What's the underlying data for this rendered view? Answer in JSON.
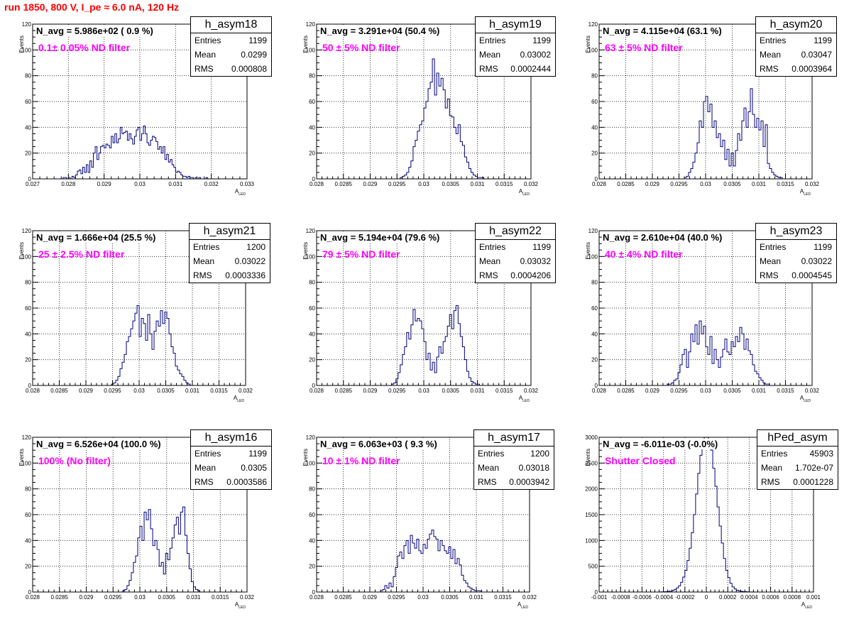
{
  "header": {
    "title": "run 1850,   800 V, I_pe ≈ 6.0 nA, 120 Hz"
  },
  "labels": {
    "entries": "Entries",
    "mean": "Mean",
    "rms": "RMS",
    "xlabel_main": "A",
    "xlabel_sub": "LED",
    "ylabel": "Events"
  },
  "colors": {
    "histogram": "#00007f",
    "title_text": "#ff0000",
    "filter_text": "#ff00ff",
    "grid": "#000000"
  },
  "chart_data": [
    {
      "type": "bar",
      "name": "h_asym18",
      "navg": "N_avg = 5.986e+02 ( 0.9 %)",
      "filter": "0.1± 0.05% ND filter",
      "stats": {
        "entries": "1199",
        "mean": "0.0299",
        "rms": "0.000808"
      },
      "xlim": [
        0.027,
        0.033
      ],
      "ylim": [
        0,
        120
      ],
      "xticks": [
        "0.027",
        "0.028",
        "0.029",
        "0.03",
        "0.031",
        "0.032",
        "0.033"
      ],
      "yticks": [
        "0",
        "20",
        "40",
        "60",
        "80",
        "100",
        "120"
      ],
      "values": [
        0,
        0,
        0,
        0,
        0,
        0,
        0,
        0,
        0,
        0,
        0,
        0,
        0,
        0,
        0,
        0,
        0,
        1,
        1,
        0,
        1,
        0,
        2,
        1,
        3,
        6,
        7,
        4,
        9,
        5,
        11,
        5,
        14,
        9,
        20,
        25,
        15,
        20,
        25,
        26,
        24,
        27,
        26,
        24,
        33,
        28,
        35,
        28,
        31,
        40,
        35,
        36,
        37,
        30,
        35,
        31,
        27,
        33,
        38,
        40,
        30,
        35,
        41,
        35,
        28,
        26,
        30,
        33,
        32,
        29,
        23,
        25,
        20,
        25,
        15,
        19,
        13,
        15,
        11,
        9,
        5,
        6,
        5,
        3,
        2,
        2,
        1,
        2,
        1,
        1,
        0,
        1,
        0,
        1,
        0,
        0,
        0,
        1,
        0,
        0,
        0,
        0,
        0,
        0,
        0,
        0,
        0,
        0,
        0,
        0,
        0,
        0,
        0,
        0,
        0,
        0,
        0,
        0,
        0,
        0
      ]
    },
    {
      "type": "bar",
      "name": "h_asym19",
      "navg": "N_avg = 3.291e+04 (50.4 %)",
      "filter": "50 ± 5% ND filter",
      "stats": {
        "entries": "1199",
        "mean": "0.03002",
        "rms": "0.0002444"
      },
      "xlim": [
        0.028,
        0.032
      ],
      "ylim": [
        0,
        120
      ],
      "xticks": [
        "0.028",
        "0.0285",
        "0.029",
        "0.0295",
        "0.03",
        "0.0305",
        "0.031",
        "0.0315",
        "0.032"
      ],
      "yticks": [
        "0",
        "20",
        "40",
        "60",
        "80",
        "100",
        "120"
      ],
      "values": [
        0,
        0,
        0,
        0,
        0,
        0,
        0,
        0,
        0,
        0,
        0,
        0,
        0,
        0,
        0,
        0,
        0,
        0,
        0,
        0,
        0,
        0,
        0,
        0,
        0,
        0,
        0,
        0,
        0,
        0,
        0,
        0,
        0,
        0,
        0,
        0,
        0,
        0,
        0,
        1,
        2,
        3,
        5,
        9,
        14,
        25,
        30,
        37,
        42,
        45,
        55,
        60,
        70,
        75,
        93,
        65,
        82,
        72,
        78,
        69,
        55,
        62,
        49,
        48,
        40,
        35,
        42,
        29,
        26,
        17,
        13,
        8,
        5,
        3,
        2,
        1,
        1,
        1,
        0,
        0,
        0,
        0,
        0,
        0,
        0,
        0,
        0,
        0,
        0,
        0,
        0,
        0,
        0,
        0,
        0,
        0,
        0,
        0,
        0,
        0
      ]
    },
    {
      "type": "bar",
      "name": "h_asym20",
      "navg": "N_avg = 4.115e+04 (63.1 %)",
      "filter": "63 ± 5% ND filter",
      "stats": {
        "entries": "1199",
        "mean": "0.03047",
        "rms": "0.0003964"
      },
      "xlim": [
        0.028,
        0.032
      ],
      "ylim": [
        0,
        120
      ],
      "xticks": [
        "0.028",
        "0.0285",
        "0.029",
        "0.0295",
        "0.03",
        "0.0305",
        "0.031",
        "0.0315",
        "0.032"
      ],
      "yticks": [
        "0",
        "20",
        "40",
        "60",
        "80",
        "100",
        "120"
      ],
      "values": [
        0,
        0,
        0,
        0,
        0,
        0,
        0,
        0,
        0,
        0,
        0,
        0,
        0,
        0,
        0,
        0,
        0,
        0,
        0,
        0,
        0,
        0,
        0,
        0,
        0,
        0,
        0,
        0,
        0,
        0,
        0,
        0,
        0,
        0,
        0,
        0,
        0,
        0,
        0,
        0,
        1,
        2,
        5,
        8,
        13,
        20,
        28,
        45,
        40,
        60,
        64,
        52,
        58,
        40,
        45,
        32,
        35,
        25,
        30,
        15,
        23,
        10,
        20,
        10,
        22,
        35,
        30,
        45,
        55,
        40,
        52,
        70,
        50,
        40,
        47,
        38,
        45,
        25,
        42,
        12,
        8,
        5,
        3,
        2,
        1,
        1,
        0,
        0,
        0,
        0,
        0,
        0,
        0,
        0,
        0,
        0,
        0,
        0,
        0,
        0
      ]
    },
    {
      "type": "bar",
      "name": "h_asym21",
      "navg": "N_avg = 1.666e+04 (25.5 %)",
      "filter": "25 ± 2.5% ND filter",
      "stats": {
        "entries": "1200",
        "mean": "0.03022",
        "rms": "0.0003336"
      },
      "xlim": [
        0.028,
        0.032
      ],
      "ylim": [
        0,
        120
      ],
      "xticks": [
        "0.028",
        "0.0285",
        "0.029",
        "0.0295",
        "0.03",
        "0.0305",
        "0.031",
        "0.0315",
        "0.032"
      ],
      "yticks": [
        "0",
        "20",
        "40",
        "60",
        "80",
        "100",
        "120"
      ],
      "values": [
        0,
        0,
        0,
        0,
        0,
        0,
        0,
        0,
        0,
        0,
        0,
        0,
        0,
        0,
        0,
        0,
        0,
        0,
        0,
        0,
        0,
        0,
        0,
        0,
        0,
        0,
        0,
        0,
        0,
        0,
        0,
        0,
        0,
        0,
        0,
        0,
        0,
        1,
        2,
        4,
        7,
        13,
        18,
        24,
        34,
        38,
        44,
        50,
        56,
        62,
        38,
        52,
        48,
        35,
        55,
        40,
        28,
        42,
        50,
        46,
        58,
        48,
        57,
        52,
        40,
        30,
        25,
        15,
        12,
        9,
        7,
        4,
        2,
        1,
        0,
        0,
        0,
        0,
        0,
        0,
        0,
        0,
        0,
        0,
        0,
        0,
        0,
        0,
        0,
        0,
        0,
        0,
        0,
        0,
        0,
        0,
        0,
        0,
        0,
        0
      ]
    },
    {
      "type": "bar",
      "name": "h_asym22",
      "navg": "N_avg = 5.194e+04 (79.6 %)",
      "filter": "79 ± 5% ND filter",
      "stats": {
        "entries": "1199",
        "mean": "0.03032",
        "rms": "0.0004206"
      },
      "xlim": [
        0.028,
        0.032
      ],
      "ylim": [
        0,
        120
      ],
      "xticks": [
        "0.028",
        "0.0285",
        "0.029",
        "0.0295",
        "0.03",
        "0.0305",
        "0.031",
        "0.0315",
        "0.032"
      ],
      "yticks": [
        "0",
        "20",
        "40",
        "60",
        "80",
        "100",
        "120"
      ],
      "values": [
        0,
        0,
        0,
        0,
        0,
        0,
        0,
        0,
        0,
        0,
        0,
        0,
        0,
        0,
        0,
        0,
        0,
        0,
        0,
        0,
        0,
        0,
        0,
        0,
        0,
        0,
        0,
        0,
        0,
        0,
        0,
        0,
        0,
        0,
        0,
        1,
        2,
        5,
        10,
        16,
        24,
        30,
        41,
        36,
        47,
        59,
        50,
        52,
        50,
        44,
        34,
        20,
        25,
        12,
        18,
        10,
        22,
        30,
        25,
        34,
        38,
        46,
        55,
        44,
        58,
        62,
        48,
        38,
        30,
        20,
        11,
        6,
        3,
        2,
        1,
        1,
        0,
        0,
        0,
        0,
        0,
        0,
        0,
        0,
        0,
        0,
        0,
        0,
        0,
        0,
        0,
        0,
        0,
        0,
        0,
        0,
        0,
        0,
        0,
        0
      ]
    },
    {
      "type": "bar",
      "name": "h_asym23",
      "navg": "N_avg = 2.610e+04 (40.0 %)",
      "filter": "40 ± 4% ND filter",
      "stats": {
        "entries": "1199",
        "mean": "0.03022",
        "rms": "0.0004545"
      },
      "xlim": [
        0.028,
        0.032
      ],
      "ylim": [
        0,
        120
      ],
      "xticks": [
        "0.028",
        "0.0285",
        "0.029",
        "0.0295",
        "0.03",
        "0.0305",
        "0.031",
        "0.0315",
        "0.032"
      ],
      "yticks": [
        "0",
        "20",
        "40",
        "60",
        "80",
        "100",
        "120"
      ],
      "values": [
        0,
        0,
        0,
        0,
        0,
        0,
        0,
        0,
        0,
        0,
        0,
        0,
        0,
        0,
        0,
        0,
        0,
        0,
        0,
        0,
        0,
        0,
        0,
        0,
        0,
        0,
        0,
        0,
        0,
        0,
        0,
        0,
        1,
        1,
        2,
        4,
        5,
        10,
        16,
        24,
        28,
        14,
        26,
        40,
        34,
        47,
        32,
        50,
        40,
        46,
        30,
        24,
        38,
        17,
        28,
        20,
        14,
        22,
        28,
        36,
        26,
        24,
        34,
        30,
        38,
        34,
        45,
        40,
        28,
        36,
        27,
        24,
        16,
        11,
        9,
        6,
        4,
        2,
        1,
        1,
        0,
        0,
        0,
        0,
        0,
        0,
        0,
        0,
        0,
        0,
        0,
        0,
        0,
        0,
        0,
        0,
        0,
        0,
        0,
        0
      ]
    },
    {
      "type": "bar",
      "name": "h_asym16",
      "navg": "N_avg = 6.526e+04 (100.0 %)",
      "filter": "100% (No filter)",
      "stats": {
        "entries": "1199",
        "mean": "0.0305",
        "rms": "0.0003586"
      },
      "xlim": [
        0.028,
        0.032
      ],
      "ylim": [
        0,
        120
      ],
      "xticks": [
        "0.028",
        "0.0285",
        "0.029",
        "0.0295",
        "0.03",
        "0.0305",
        "0.031",
        "0.0315",
        "0.032"
      ],
      "yticks": [
        "0",
        "20",
        "40",
        "60",
        "80",
        "100",
        "120"
      ],
      "values": [
        0,
        0,
        0,
        0,
        0,
        0,
        0,
        0,
        0,
        0,
        0,
        0,
        0,
        0,
        0,
        0,
        0,
        0,
        0,
        0,
        0,
        0,
        0,
        0,
        0,
        0,
        0,
        0,
        0,
        0,
        0,
        0,
        0,
        0,
        0,
        0,
        0,
        0,
        0,
        0,
        0,
        0,
        1,
        2,
        5,
        9,
        15,
        23,
        28,
        42,
        51,
        40,
        62,
        56,
        64,
        49,
        36,
        40,
        33,
        20,
        23,
        14,
        30,
        25,
        34,
        42,
        52,
        58,
        45,
        62,
        66,
        44,
        30,
        18,
        8,
        4,
        2,
        1,
        0,
        0,
        0,
        0,
        0,
        0,
        0,
        0,
        0,
        0,
        0,
        0,
        0,
        0,
        0,
        0,
        0,
        0,
        0,
        0,
        0,
        0
      ]
    },
    {
      "type": "bar",
      "name": "h_asym17",
      "navg": "N_avg = 6.063e+03 ( 9.3 %)",
      "filter": "10 ± 1% ND filter",
      "stats": {
        "entries": "1200",
        "mean": "0.03018",
        "rms": "0.0003942"
      },
      "xlim": [
        0.028,
        0.032
      ],
      "ylim": [
        0,
        120
      ],
      "xticks": [
        "0.028",
        "0.0285",
        "0.029",
        "0.0295",
        "0.03",
        "0.0305",
        "0.031",
        "0.0315",
        "0.032"
      ],
      "yticks": [
        "0",
        "20",
        "40",
        "60",
        "80",
        "100",
        "120"
      ],
      "values": [
        0,
        0,
        0,
        0,
        0,
        0,
        0,
        0,
        0,
        0,
        0,
        0,
        0,
        0,
        0,
        0,
        0,
        0,
        0,
        0,
        0,
        0,
        0,
        0,
        0,
        0,
        0,
        0,
        0,
        0,
        1,
        2,
        5,
        3,
        7,
        4,
        12,
        19,
        28,
        31,
        26,
        36,
        40,
        30,
        44,
        38,
        34,
        41,
        32,
        30,
        37,
        34,
        41,
        45,
        48,
        43,
        41,
        32,
        40,
        36,
        32,
        30,
        35,
        26,
        33,
        22,
        26,
        21,
        13,
        9,
        7,
        4,
        3,
        2,
        1,
        1,
        1,
        0,
        0,
        0,
        0,
        0,
        0,
        0,
        0,
        0,
        0,
        0,
        0,
        0,
        0,
        0,
        0,
        0,
        0,
        0,
        0,
        0,
        0,
        0
      ]
    },
    {
      "type": "bar",
      "name": "hPed_asym",
      "navg": "N_avg = -6.011e-03 (-0.0%)",
      "filter": "Shutter Closed",
      "stats": {
        "entries": "45903",
        "mean": "1.702e-07",
        "rms": "0.0001228"
      },
      "xlim": [
        -0.001,
        0.001
      ],
      "ylim": [
        0,
        3000
      ],
      "xticks": [
        "-0.001",
        "-0.0008",
        "-0.0006",
        "-0.0004",
        "-0.0002",
        "0",
        "0.0002",
        "0.0004",
        "0.0006",
        "0.0008",
        "0.001"
      ],
      "yticks": [
        "0",
        "500",
        "1000",
        "1500",
        "2000",
        "2500",
        "3000"
      ],
      "values": [
        0,
        0,
        0,
        0,
        0,
        0,
        0,
        0,
        0,
        0,
        0,
        0,
        0,
        0,
        0,
        0,
        0,
        0,
        0,
        0,
        0,
        0,
        0,
        0,
        0,
        0,
        0,
        0,
        2,
        3,
        5,
        8,
        12,
        18,
        30,
        50,
        80,
        120,
        190,
        290,
        420,
        610,
        850,
        1150,
        1500,
        1900,
        2300,
        2650,
        2900,
        3050,
        3000,
        2950,
        2750,
        2400,
        2050,
        1650,
        1280,
        950,
        650,
        420,
        280,
        170,
        100,
        60,
        35,
        22,
        14,
        9,
        6,
        3,
        2,
        1,
        0,
        0,
        0,
        0,
        0,
        0,
        0,
        0,
        0,
        0,
        0,
        0,
        0,
        0,
        0,
        0,
        0,
        0,
        0,
        0,
        0,
        0,
        0,
        0,
        0,
        0,
        0,
        0
      ]
    }
  ]
}
